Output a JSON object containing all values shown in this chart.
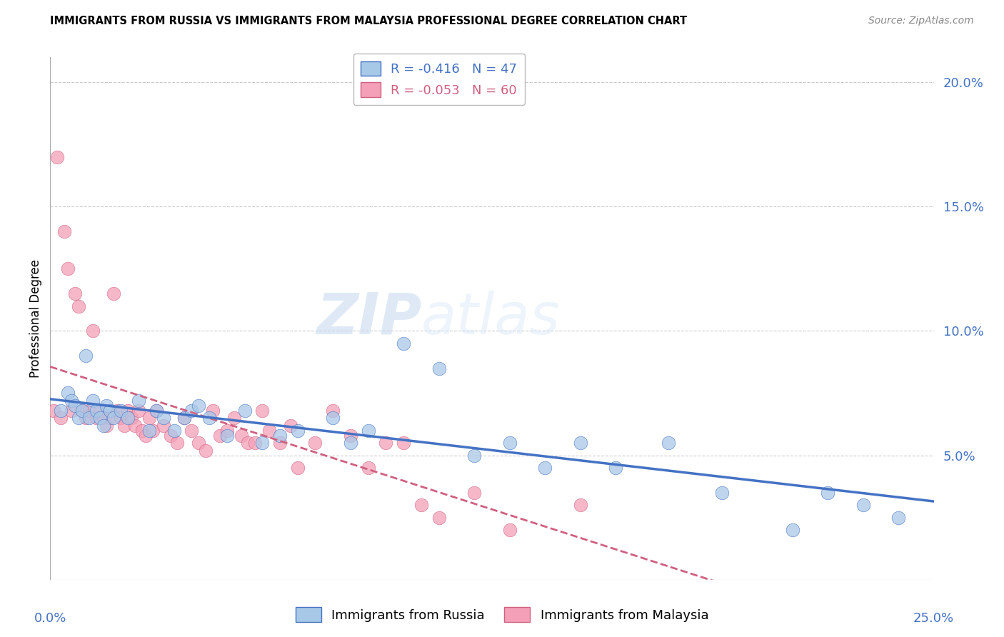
{
  "title": "IMMIGRANTS FROM RUSSIA VS IMMIGRANTS FROM MALAYSIA PROFESSIONAL DEGREE CORRELATION CHART",
  "source": "Source: ZipAtlas.com",
  "ylabel": "Professional Degree",
  "right_yticks": [
    "20.0%",
    "15.0%",
    "10.0%",
    "5.0%"
  ],
  "right_ytick_vals": [
    0.2,
    0.15,
    0.1,
    0.05
  ],
  "xlim": [
    0.0,
    0.25
  ],
  "ylim": [
    0.0,
    0.21
  ],
  "legend_russia": "R = -0.416   N = 47",
  "legend_malaysia": "R = -0.053   N = 60",
  "color_russia": "#a8c8e8",
  "color_malaysia": "#f4a0b8",
  "color_russia_line": "#4472c4",
  "color_malaysia_line": "#d06080",
  "color_axis_labels": "#4472c4",
  "watermark_zip": "ZIP",
  "watermark_atlas": "atlas",
  "gridline_color": "#cccccc",
  "background_color": "#ffffff",
  "russia_scatter_x": [
    0.003,
    0.005,
    0.006,
    0.007,
    0.008,
    0.009,
    0.01,
    0.011,
    0.012,
    0.013,
    0.014,
    0.015,
    0.016,
    0.017,
    0.018,
    0.02,
    0.022,
    0.025,
    0.028,
    0.03,
    0.032,
    0.035,
    0.038,
    0.04,
    0.042,
    0.045,
    0.05,
    0.055,
    0.06,
    0.065,
    0.07,
    0.08,
    0.085,
    0.09,
    0.1,
    0.11,
    0.12,
    0.13,
    0.14,
    0.15,
    0.16,
    0.175,
    0.19,
    0.21,
    0.22,
    0.23,
    0.24
  ],
  "russia_scatter_y": [
    0.068,
    0.075,
    0.072,
    0.07,
    0.065,
    0.068,
    0.09,
    0.065,
    0.072,
    0.068,
    0.065,
    0.062,
    0.07,
    0.068,
    0.065,
    0.068,
    0.065,
    0.072,
    0.06,
    0.068,
    0.065,
    0.06,
    0.065,
    0.068,
    0.07,
    0.065,
    0.058,
    0.068,
    0.055,
    0.058,
    0.06,
    0.065,
    0.055,
    0.06,
    0.095,
    0.085,
    0.05,
    0.055,
    0.045,
    0.055,
    0.045,
    0.055,
    0.035,
    0.02,
    0.035,
    0.03,
    0.025
  ],
  "malaysia_scatter_x": [
    0.001,
    0.002,
    0.003,
    0.004,
    0.005,
    0.006,
    0.007,
    0.008,
    0.009,
    0.01,
    0.011,
    0.012,
    0.013,
    0.014,
    0.015,
    0.016,
    0.017,
    0.018,
    0.019,
    0.02,
    0.021,
    0.022,
    0.023,
    0.024,
    0.025,
    0.026,
    0.027,
    0.028,
    0.029,
    0.03,
    0.032,
    0.034,
    0.036,
    0.038,
    0.04,
    0.042,
    0.044,
    0.046,
    0.048,
    0.05,
    0.052,
    0.054,
    0.056,
    0.058,
    0.06,
    0.062,
    0.065,
    0.068,
    0.07,
    0.075,
    0.08,
    0.085,
    0.09,
    0.095,
    0.1,
    0.105,
    0.11,
    0.12,
    0.13,
    0.15
  ],
  "malaysia_scatter_y": [
    0.068,
    0.17,
    0.065,
    0.14,
    0.125,
    0.068,
    0.115,
    0.11,
    0.068,
    0.065,
    0.068,
    0.1,
    0.065,
    0.068,
    0.065,
    0.062,
    0.065,
    0.115,
    0.068,
    0.065,
    0.062,
    0.068,
    0.065,
    0.062,
    0.068,
    0.06,
    0.058,
    0.065,
    0.06,
    0.068,
    0.062,
    0.058,
    0.055,
    0.065,
    0.06,
    0.055,
    0.052,
    0.068,
    0.058,
    0.06,
    0.065,
    0.058,
    0.055,
    0.055,
    0.068,
    0.06,
    0.055,
    0.062,
    0.045,
    0.055,
    0.068,
    0.058,
    0.045,
    0.055,
    0.055,
    0.03,
    0.025,
    0.035,
    0.02,
    0.03
  ]
}
